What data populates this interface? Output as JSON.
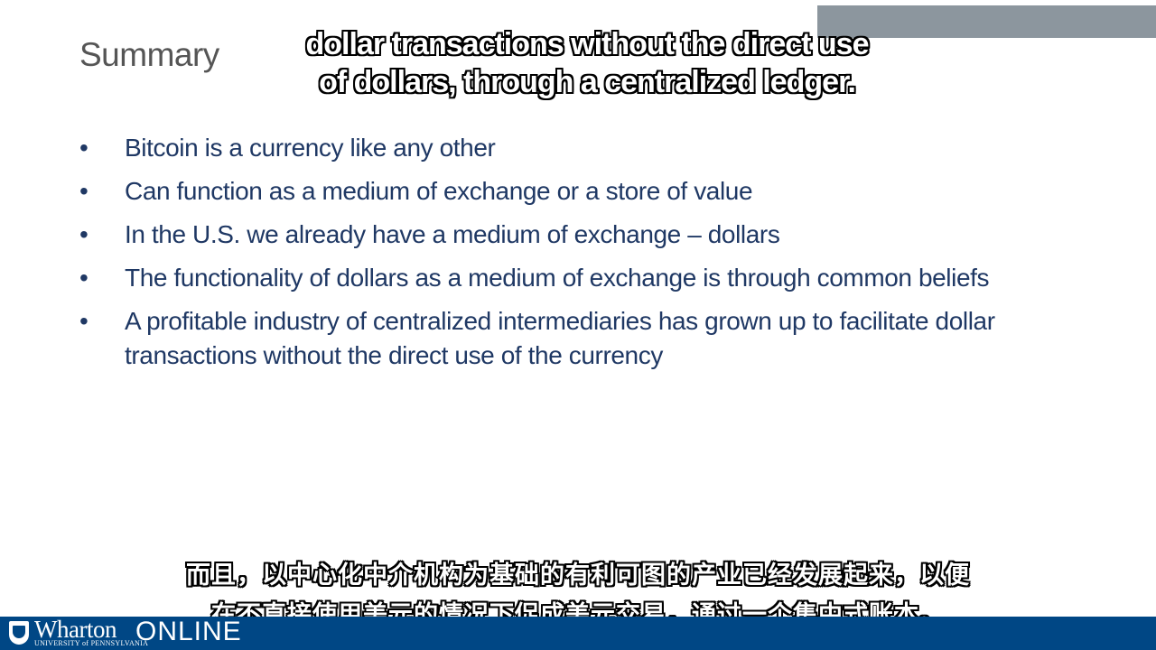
{
  "slide": {
    "title": "Summary",
    "bullets": [
      {
        "marker": "•",
        "text": "Bitcoin is a currency like any other"
      },
      {
        "marker": "•",
        "text": "Can function as a medium of exchange or a store of value"
      },
      {
        "marker": "•",
        "text": "In the U.S. we already have a medium of exchange – dollars"
      },
      {
        "marker": "•",
        "text": "The functionality of dollars as a medium of exchange is through common beliefs"
      },
      {
        "marker": "•",
        "text": "A profitable industry of centralized intermediaries has grown up to facilitate dollar transactions without the direct use of the currency"
      }
    ]
  },
  "captions": {
    "english": {
      "line1": "dollar transactions without the direct use",
      "line2": "of dollars, through a centralized ledger."
    },
    "chinese": {
      "line1": "而且，以中心化中介机构为基础的有利可图的产业已经发展起来，以便",
      "line2": "在不直接使用美元的情况下促成美元交易，通过一个集中式账本。"
    }
  },
  "footer": {
    "logo_name": "Wharton",
    "logo_subtitle": "UNIVERSITY of PENNSYLVANIA",
    "logo_online": "ONLINE",
    "logo_icon": "shield-icon"
  },
  "colors": {
    "background": "#ffffff",
    "title": "#555555",
    "bullet_text": "#1f3864",
    "footer_band": "#004785",
    "corner_band": "#8c969e"
  }
}
